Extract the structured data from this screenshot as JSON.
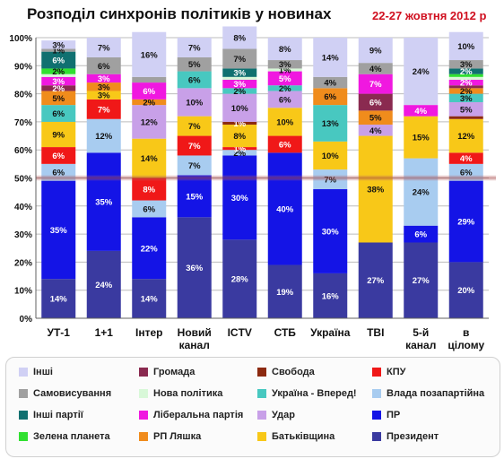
{
  "header": {
    "title": "Розподіл синхронів політиків у новинах",
    "date": "22-27 жовтня 2012 р"
  },
  "chart_data": {
    "type": "bar",
    "stacked": true,
    "grid": true,
    "legend_position": "bottom",
    "ylim": [
      0,
      100
    ],
    "yticks": [
      "0%",
      "10%",
      "20%",
      "30%",
      "40%",
      "50%",
      "60%",
      "70%",
      "80%",
      "90%",
      "100%"
    ],
    "reference_line": 50,
    "categories": [
      [
        "УТ-1"
      ],
      [
        "1+1"
      ],
      [
        "Інтер"
      ],
      [
        "Новий",
        "канал"
      ],
      [
        "ICTV"
      ],
      [
        "СТБ"
      ],
      [
        "Україна"
      ],
      [
        "ТВІ"
      ],
      [
        "5-й",
        "канал"
      ],
      [
        "в",
        "цілому"
      ]
    ],
    "series": [
      {
        "name": "Президент",
        "color": "#3a3aa0",
        "values": [
          14,
          24,
          14,
          36,
          28,
          19,
          16,
          27,
          27,
          20
        ],
        "labels": [
          "14%",
          "24%",
          "14%",
          "36%",
          "28%",
          "19%",
          "16%",
          "27%",
          "27%",
          "20%"
        ]
      },
      {
        "name": "ПР",
        "color": "#1414e6",
        "values": [
          35,
          35,
          22,
          15,
          30,
          40,
          30,
          0,
          6,
          29
        ],
        "labels": [
          "35%",
          "35%",
          "22%",
          "15%",
          "30%",
          "40%",
          "30%",
          "",
          "6%",
          "29%"
        ]
      },
      {
        "name": "Влада позапартійна",
        "color": "#a8ccf0",
        "values": [
          6,
          12,
          6,
          7,
          2,
          0,
          7,
          0,
          24,
          6
        ],
        "labels": [
          "6%",
          "12%",
          "6%",
          "7%",
          "2%",
          "",
          "7%",
          "",
          "24%",
          "6%"
        ]
      },
      {
        "name": "КПУ",
        "color": "#f01818",
        "values": [
          6,
          7,
          8,
          7,
          1,
          6,
          0,
          0,
          0,
          4
        ],
        "labels": [
          "6%",
          "7%",
          "8%",
          "7%",
          "1%",
          "6%",
          "",
          "",
          "",
          "4%"
        ]
      },
      {
        "name": "Батьківщина",
        "color": "#f8c818",
        "values": [
          9,
          3,
          14,
          7,
          8,
          10,
          10,
          38,
          15,
          12
        ],
        "labels": [
          "9%",
          "3%",
          "14%",
          "7%",
          "8%",
          "10%",
          "10%",
          "38%",
          "15%",
          "12%"
        ]
      },
      {
        "name": "Свобода",
        "color": "#8c2a10",
        "values": [
          0,
          0,
          0,
          0,
          1,
          0,
          0,
          0,
          0,
          1
        ],
        "labels": [
          "",
          "",
          "",
          "",
          "1%",
          "",
          "",
          "",
          "",
          ""
        ]
      },
      {
        "name": "Удар",
        "color": "#c8a0e8",
        "values": [
          0,
          0,
          12,
          10,
          10,
          6,
          0,
          4,
          0,
          5
        ],
        "labels": [
          "",
          "",
          "12%",
          "10%",
          "10%",
          "6%",
          "",
          "4%",
          "",
          "5%"
        ]
      },
      {
        "name": "Україна - Вперед!",
        "color": "#48c8c0",
        "values": [
          6,
          0,
          0,
          6,
          2,
          2,
          13,
          0,
          0,
          3
        ],
        "labels": [
          "6%",
          "",
          "",
          "6%",
          "2%",
          "2%",
          "13%",
          "",
          "",
          "3%"
        ]
      },
      {
        "name": "РП Ляшка",
        "color": "#f08c1c",
        "values": [
          5,
          3,
          2,
          0,
          0,
          0,
          6,
          5,
          0,
          2
        ],
        "labels": [
          "5%",
          "3%",
          "2%",
          "",
          "",
          "",
          "6%",
          "5%",
          "",
          "2%"
        ]
      },
      {
        "name": "Громада",
        "color": "#8a2a50",
        "values": [
          2,
          0,
          0,
          0,
          0,
          0,
          0,
          6,
          0,
          1
        ],
        "labels": [
          "2%",
          "",
          "",
          "",
          "",
          "",
          "",
          "6%",
          "",
          ""
        ]
      },
      {
        "name": "Ліберальна партія",
        "color": "#f018e0",
        "values": [
          3,
          3,
          6,
          0,
          3,
          5,
          0,
          7,
          4,
          2
        ],
        "labels": [
          "3%",
          "3%",
          "6%",
          "",
          "3%",
          "5%",
          "",
          "7%",
          "4%",
          "2%"
        ]
      },
      {
        "name": "Нова політика",
        "color": "#d8f8d8",
        "values": [
          1,
          0,
          0,
          0,
          1,
          1,
          0,
          0,
          0,
          1
        ],
        "labels": [
          "",
          "",
          "",
          "",
          "",
          "1%",
          "",
          "",
          "",
          ""
        ]
      },
      {
        "name": "Зелена планета",
        "color": "#30e030",
        "values": [
          2,
          0,
          0,
          0,
          0,
          0,
          0,
          0,
          0,
          1
        ],
        "labels": [
          "2%",
          "",
          "",
          "",
          "",
          "",
          "",
          "",
          "",
          ""
        ]
      },
      {
        "name": "Інші партії",
        "color": "#107070",
        "values": [
          6,
          0,
          0,
          0,
          3,
          0,
          0,
          0,
          0,
          2
        ],
        "labels": [
          "6%",
          "",
          "",
          "",
          "3%",
          "",
          "",
          "",
          "",
          "2%"
        ]
      },
      {
        "name": "Самовисування",
        "color": "#a0a0a0",
        "values": [
          1,
          6,
          2,
          5,
          7,
          3,
          4,
          4,
          0,
          3
        ],
        "labels": [
          "1%",
          "6%",
          "",
          "5%",
          "7%",
          "3%",
          "4%",
          "4%",
          "",
          "3%"
        ]
      },
      {
        "name": "Інші",
        "color": "#d0d0f4",
        "values": [
          3,
          7,
          16,
          7,
          8,
          8,
          14,
          9,
          24,
          10
        ],
        "labels": [
          "3%",
          "7%",
          "16%",
          "7%",
          "8%",
          "8%",
          "14%",
          "9%",
          "24%",
          "10%"
        ]
      }
    ]
  },
  "legend": {
    "items": [
      {
        "name": "Інші",
        "color": "#d0d0f4"
      },
      {
        "name": "Громада",
        "color": "#8a2a50"
      },
      {
        "name": "Свобода",
        "color": "#8c2a10"
      },
      {
        "name": "КПУ",
        "color": "#f01818"
      },
      {
        "name": "Самовисування",
        "color": "#a0a0a0"
      },
      {
        "name": "Нова політика",
        "color": "#d8f8d8"
      },
      {
        "name": "Україна - Вперед!",
        "color": "#48c8c0"
      },
      {
        "name": "Влада позапартійна",
        "color": "#a8ccf0"
      },
      {
        "name": "Інші партії",
        "color": "#107070"
      },
      {
        "name": "Ліберальна партія",
        "color": "#f018e0"
      },
      {
        "name": "Удар",
        "color": "#c8a0e8"
      },
      {
        "name": "ПР",
        "color": "#1414e6"
      },
      {
        "name": "Зелена планета",
        "color": "#30e030"
      },
      {
        "name": "РП Ляшка",
        "color": "#f08c1c"
      },
      {
        "name": "Батьківщина",
        "color": "#f8c818"
      },
      {
        "name": "Президент",
        "color": "#3a3aa0"
      }
    ]
  }
}
